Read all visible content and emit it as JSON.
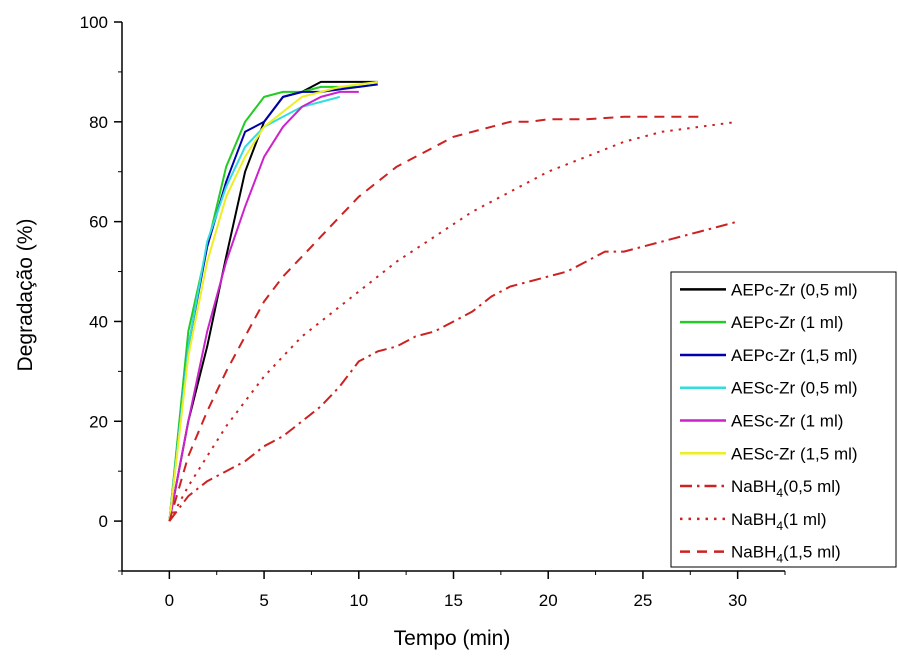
{
  "chart_data": {
    "type": "line",
    "xlabel": "Tempo (min)",
    "ylabel": "Degradação (%)",
    "xlim": [
      -2.5,
      32.5
    ],
    "ylim": [
      -10,
      100
    ],
    "xticks": [
      0,
      5,
      10,
      15,
      20,
      25,
      30
    ],
    "yticks": [
      0,
      20,
      40,
      60,
      80,
      100
    ],
    "grid": false,
    "legend_position": "right",
    "series": [
      {
        "name": "AEPc-Zr (0,5 ml)",
        "label_main": "AEPc-Zr (0,5 ml)",
        "label_sub": "",
        "label_tail": "",
        "color": "#000000",
        "dash": "solid",
        "x": [
          0,
          1,
          2,
          3,
          4,
          5,
          6,
          7,
          8,
          9,
          10,
          11
        ],
        "y": [
          0,
          20,
          35,
          53,
          70,
          80,
          85,
          86,
          88,
          88,
          88,
          88
        ]
      },
      {
        "name": "AEPc-Zr (1 ml)",
        "label_main": "AEPc-Zr (1 ml)",
        "label_sub": "",
        "label_tail": "",
        "color": "#22cc22",
        "dash": "solid",
        "x": [
          0,
          1,
          2,
          3,
          4,
          5,
          6,
          7,
          8,
          9,
          10,
          11
        ],
        "y": [
          0,
          38,
          55,
          71,
          80,
          85,
          86,
          86,
          87,
          87,
          87,
          87.5
        ]
      },
      {
        "name": "AEPc-Zr (1,5 ml)",
        "label_main": "AEPc-Zr (1,5 ml)",
        "label_sub": "",
        "label_tail": "",
        "color": "#0000aa",
        "dash": "solid",
        "x": [
          0,
          1,
          2,
          3,
          4,
          5,
          6,
          7,
          8,
          9,
          10,
          11
        ],
        "y": [
          0,
          35,
          55,
          68,
          78,
          80,
          85,
          86,
          86,
          86.5,
          87,
          87.5
        ]
      },
      {
        "name": "AESc-Zr (0,5 ml)",
        "label_main": "AESc-Zr (0,5 ml)",
        "label_sub": "",
        "label_tail": "",
        "color": "#33dddd",
        "dash": "solid",
        "x": [
          0,
          1,
          2,
          3,
          4,
          5,
          6,
          7,
          8,
          9
        ],
        "y": [
          0,
          35,
          56,
          67,
          75,
          79,
          81,
          83,
          84,
          85
        ]
      },
      {
        "name": "AESc-Zr (1 ml)",
        "label_main": "AESc-Zr (1 ml)",
        "label_sub": "",
        "label_tail": "",
        "color": "#cc22cc",
        "dash": "solid",
        "x": [
          0,
          1,
          2,
          3,
          4,
          5,
          6,
          7,
          8,
          9,
          10
        ],
        "y": [
          0,
          20,
          38,
          52,
          63,
          73,
          79,
          83,
          85,
          86,
          86
        ]
      },
      {
        "name": "AESc-Zr (1,5 ml)",
        "label_main": "AESc-Zr (1,5 ml)",
        "label_sub": "",
        "label_tail": "",
        "color": "#eeee22",
        "dash": "solid",
        "x": [
          0,
          1,
          2,
          3,
          4,
          5,
          6,
          7,
          8,
          9,
          10,
          11
        ],
        "y": [
          0,
          33,
          52,
          65,
          73,
          79,
          82,
          85,
          86,
          87,
          87.5,
          88
        ]
      },
      {
        "name": "NaBH4 (0,5 ml)",
        "label_main": "NaBH",
        "label_sub": "4",
        "label_tail": "(0,5 ml)",
        "color": "#cc2222",
        "dash": "dashdot",
        "x": [
          0,
          1,
          2,
          3,
          4,
          5,
          6,
          7,
          8,
          9,
          10,
          11,
          12,
          13,
          14,
          15,
          16,
          17,
          18,
          19,
          20,
          21,
          22,
          23,
          24,
          25,
          26,
          27,
          28,
          29,
          30
        ],
        "y": [
          0,
          5,
          8,
          10,
          12,
          15,
          17,
          20,
          23,
          27,
          32,
          34,
          35,
          37,
          38,
          40,
          42,
          45,
          47,
          48,
          49,
          50,
          52,
          54,
          54,
          55,
          56,
          57,
          58,
          59,
          60
        ]
      },
      {
        "name": "NaBH4 (1 ml)",
        "label_main": "NaBH",
        "label_sub": "4",
        "label_tail": "(1 ml)",
        "color": "#cc2222",
        "dash": "dotted",
        "x": [
          0,
          1,
          2,
          3,
          4,
          5,
          6,
          7,
          8,
          9,
          10,
          12,
          14,
          16,
          18,
          20,
          22,
          24,
          26,
          28,
          30
        ],
        "y": [
          0,
          7,
          13,
          19,
          24,
          29,
          33,
          37,
          40,
          43,
          46,
          52,
          57,
          62,
          66,
          70,
          73,
          76,
          78,
          79,
          80
        ]
      },
      {
        "name": "NaBH4 (1,5 ml)",
        "label_main": "NaBH",
        "label_sub": "4",
        "label_tail": "(1,5 ml)",
        "color": "#cc2222",
        "dash": "dashed",
        "x": [
          0,
          1,
          2,
          3,
          4,
          5,
          6,
          7,
          8,
          9,
          10,
          11,
          12,
          13,
          14,
          15,
          16,
          17,
          18,
          19,
          20,
          22,
          24,
          26,
          28
        ],
        "y": [
          0,
          13,
          22,
          30,
          37,
          44,
          49,
          53,
          57,
          61,
          65,
          68,
          71,
          73,
          75,
          77,
          78,
          79,
          80,
          80,
          80.5,
          80.5,
          81,
          81,
          81
        ]
      }
    ]
  }
}
